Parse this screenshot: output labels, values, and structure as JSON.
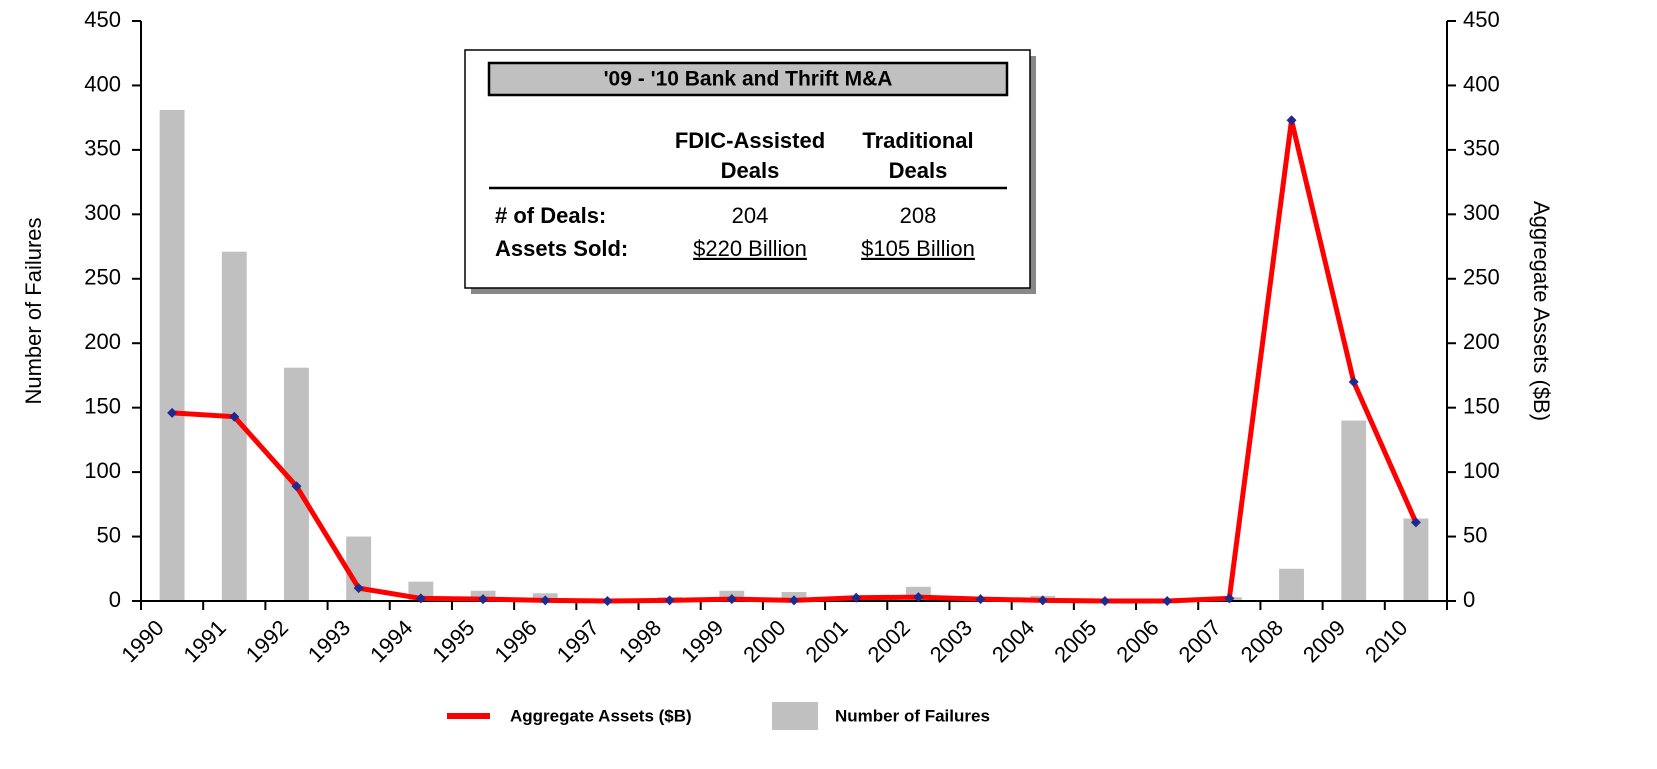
{
  "chart_data": {
    "type": "bar-line",
    "categories": [
      "1990",
      "1991",
      "1992",
      "1993",
      "1994",
      "1995",
      "1996",
      "1997",
      "1998",
      "1999",
      "2000",
      "2001",
      "2002",
      "2003",
      "2004",
      "2005",
      "2006",
      "2007",
      "2008",
      "2009",
      "2010"
    ],
    "series": [
      {
        "name": "Aggregate Assets ($B)",
        "type": "line",
        "axis": "y2",
        "color": "#ff0000",
        "marker_color": "#1f2a8c",
        "values": [
          146,
          143,
          89,
          10,
          2,
          1.5,
          0.5,
          0,
          0.5,
          1.5,
          0.5,
          2.5,
          3,
          1.5,
          0.5,
          0,
          0,
          2,
          373,
          170,
          61
        ]
      },
      {
        "name": "Number of Failures",
        "type": "bar",
        "axis": "y",
        "color": "#c0c0c0",
        "values": [
          381,
          271,
          181,
          50,
          15,
          8,
          6,
          1,
          3,
          8,
          7,
          4,
          11,
          3,
          4,
          0,
          0,
          3,
          25,
          140,
          64
        ]
      }
    ],
    "ylabel": "Number of Failures",
    "y2label": "Aggregate Assets ($B)",
    "ylim": [
      0,
      450
    ],
    "yticks": [
      0,
      50,
      100,
      150,
      200,
      250,
      300,
      350,
      400,
      450
    ],
    "y2lim": [
      0,
      450
    ],
    "y2ticks": [
      0,
      50,
      100,
      150,
      200,
      250,
      300,
      350,
      400,
      450
    ],
    "grid": false,
    "legend": "bottom"
  },
  "inset": {
    "title": "'09 - '10 Bank and Thrift M&A",
    "columns": [
      [
        "FDIC-Assisted",
        "Deals"
      ],
      [
        "Traditional",
        "Deals"
      ]
    ],
    "rows": [
      {
        "label": "# of Deals:",
        "values": [
          204,
          208
        ]
      },
      {
        "label": "Assets Sold:",
        "values": [
          "$220 Billion",
          "$105 Billion"
        ]
      }
    ]
  }
}
